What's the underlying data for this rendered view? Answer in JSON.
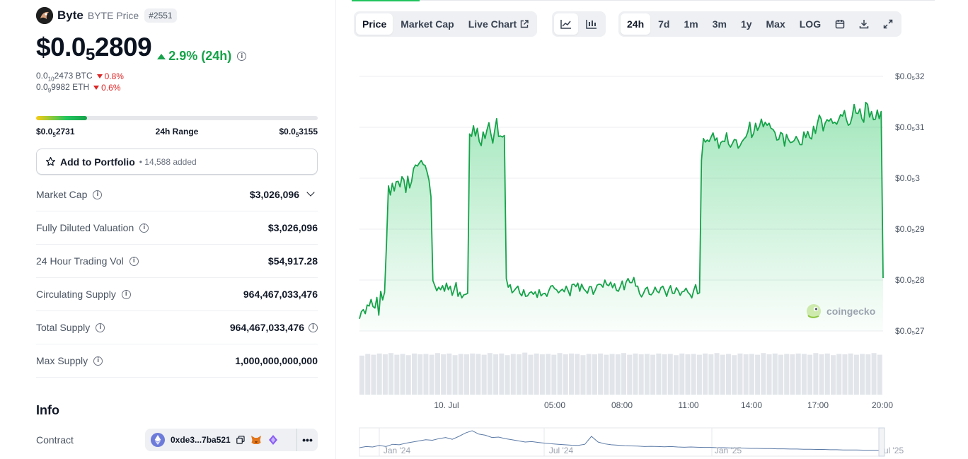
{
  "coin": {
    "name": "Byte",
    "subtitle": "BYTE Price",
    "rank": "#2551",
    "price_main": "$0.0",
    "price_sub": "5",
    "price_rest": "2809",
    "change_24h": "2.9% (24h)",
    "btc_main": "0.0",
    "btc_sub": "10",
    "btc_rest": "2473 BTC",
    "btc_change": "0.8%",
    "eth_main": "0.0",
    "eth_sub": "9",
    "eth_rest": "9982 ETH",
    "eth_change": "0.6%"
  },
  "range": {
    "low_main": "$0.0",
    "low_sub": "5",
    "low_rest": "2731",
    "label": "24h Range",
    "high_main": "$0.0",
    "high_sub": "5",
    "high_rest": "3155",
    "position_fraction": 0.18
  },
  "portfolio": {
    "label": "Add to Portfolio",
    "count": "• 14,588 added"
  },
  "stats": [
    {
      "label": "Market Cap",
      "value": "$3,026,096"
    },
    {
      "label": "Fully Diluted Valuation",
      "value": "$3,026,096"
    },
    {
      "label": "24 Hour Trading Vol",
      "value": "$54,917.28"
    },
    {
      "label": "Circulating Supply",
      "value": "964,467,033,476"
    },
    {
      "label": "Total Supply",
      "value": "964,467,033,476"
    },
    {
      "label": "Max Supply",
      "value": "1,000,000,000,000"
    }
  ],
  "info": {
    "title": "Info",
    "contract_label": "Contract",
    "contract_address": "0xde3...7ba521"
  },
  "toolbar": {
    "view_tabs": [
      "Price",
      "Market Cap",
      "Live Chart"
    ],
    "active_view": "Price",
    "ranges": [
      "24h",
      "7d",
      "1m",
      "3m",
      "1y",
      "Max",
      "LOG"
    ],
    "active_range": "24h"
  },
  "colors": {
    "up": "#16a34a",
    "down": "#dc2626",
    "line": "#16a34a",
    "brand_gecko": "#8dc63f"
  },
  "chart_data": {
    "type": "area",
    "y_ticks": [
      "$0.0₅32",
      "$0.0₅31",
      "$0.0₅3",
      "$0.0₅29",
      "$0.0₅28",
      "$0.0₅27"
    ],
    "y_tick_values": [
      3.2e-06,
      3.1e-06,
      3e-06,
      2.9e-06,
      2.8e-06,
      2.7e-06
    ],
    "ylim": [
      2.7e-06,
      3.2e-06
    ],
    "x_ticks": [
      "10. Jul",
      "05:00",
      "08:00",
      "11:00",
      "14:00",
      "17:00",
      "20:00"
    ],
    "watermark": "coingecko",
    "series": [
      {
        "values": [
          2.724,
          2.738,
          2.742,
          2.734,
          2.751,
          2.749,
          2.762,
          2.748,
          2.745,
          2.766,
          2.731,
          2.778,
          2.761,
          2.776,
          2.872,
          2.985,
          2.967,
          2.99,
          2.975,
          2.993,
          2.994,
          2.983,
          3.003,
          2.997,
          2.972,
          3.004,
          2.981,
          2.994,
          3.019,
          3.026,
          3.024,
          3.03,
          3.035,
          3.027,
          3.025,
          3.012,
          2.996,
          2.964,
          2.799,
          2.789,
          2.779,
          2.786,
          2.781,
          2.789,
          2.778,
          2.794,
          2.781,
          2.788,
          2.77,
          2.781,
          2.795,
          2.768,
          2.776,
          2.765,
          2.771,
          2.772,
          2.774,
          3.087,
          3.082,
          3.103,
          3.083,
          3.098,
          3.072,
          3.064,
          3.091,
          3.078,
          3.095,
          3.109,
          3.087,
          3.069,
          3.094,
          3.117,
          3.082,
          3.083,
          3.081,
          3.084,
          2.803,
          2.786,
          2.791,
          2.775,
          2.779,
          2.784,
          2.788,
          2.774,
          2.769,
          2.781,
          2.768,
          2.769,
          2.775,
          2.777,
          2.772,
          2.777,
          2.766,
          2.781,
          2.769,
          2.773,
          2.774,
          2.768,
          2.779,
          2.788,
          2.789,
          2.783,
          2.781,
          2.775,
          2.779,
          2.782,
          2.777,
          2.788,
          2.779,
          2.769,
          2.791,
          2.792,
          2.787,
          2.794,
          2.778,
          2.792,
          2.783,
          2.779,
          2.774,
          2.787,
          2.787,
          2.772,
          2.78,
          2.79,
          2.792,
          2.791,
          2.786,
          2.8,
          2.791,
          2.789,
          2.796,
          2.785,
          2.793,
          2.78,
          2.778,
          2.787,
          2.798,
          2.781,
          2.796,
          2.803,
          2.795,
          2.795,
          2.805,
          2.788,
          2.788,
          2.773,
          2.767,
          2.774,
          2.783,
          2.786,
          2.772,
          2.771,
          2.776,
          2.786,
          2.778,
          2.775,
          2.785,
          2.788,
          2.779,
          2.768,
          2.781,
          2.789,
          2.774,
          2.774,
          2.785,
          2.779,
          2.77,
          2.777,
          2.778,
          2.784,
          2.776,
          2.772,
          2.765,
          2.78,
          2.791,
          2.773,
          2.775,
          3.035,
          3.078,
          3.071,
          3.075,
          3.072,
          3.081,
          3.089,
          3.074,
          3.079,
          3.059,
          3.07,
          3.073,
          3.072,
          3.089,
          3.067,
          3.061,
          3.068,
          3.076,
          3.075,
          3.059,
          3.064,
          3.072,
          3.077,
          3.081,
          3.091,
          3.11,
          3.08,
          3.088,
          3.108,
          3.094,
          3.102,
          3.116,
          3.101,
          3.11,
          3.104,
          3.108,
          3.098,
          3.096,
          3.09,
          3.075,
          3.076,
          3.09,
          3.087,
          3.063,
          3.086,
          3.076,
          3.07,
          3.071,
          3.074,
          3.082,
          3.075,
          3.066,
          3.066,
          3.091,
          3.08,
          3.092,
          3.08,
          3.077,
          3.102,
          3.088,
          3.108,
          3.124,
          3.116,
          3.093,
          3.108,
          3.115,
          3.112,
          3.117,
          3.108,
          3.11,
          3.106,
          3.115,
          3.125,
          3.122,
          3.133,
          3.115,
          3.104,
          3.107,
          3.121,
          3.145,
          3.128,
          3.127,
          3.136,
          3.117,
          3.11,
          3.149,
          3.145,
          3.12,
          3.131,
          3.115,
          3.116,
          3.134,
          3.117,
          3.131,
          2.804
        ]
      }
    ],
    "volume": [
      0.92,
      0.96,
      0.94,
      0.97,
      0.95,
      0.98,
      0.94,
      0.96,
      0.93,
      0.97,
      0.95,
      0.96,
      0.94,
      0.98,
      0.95,
      0.97,
      0.93,
      0.96,
      0.95,
      0.97,
      0.96,
      0.94,
      0.98,
      0.95,
      0.97,
      0.93,
      0.96,
      0.95,
      0.99,
      0.94,
      0.97,
      0.95,
      0.96,
      0.94,
      0.98,
      0.95,
      0.97,
      0.96,
      0.93,
      0.96,
      0.95,
      0.97,
      0.94,
      0.96,
      0.95,
      0.98,
      0.94,
      0.97,
      0.95,
      0.96,
      0.94,
      0.97,
      0.95,
      0.96,
      0.93,
      0.97,
      0.95,
      0.96,
      0.94,
      0.97,
      0.95,
      0.98,
      0.94,
      0.96,
      0.93,
      0.97,
      0.95,
      0.96,
      0.94,
      0.98,
      0.95,
      0.97,
      0.94,
      0.96,
      0.95,
      0.97,
      0.96,
      0.94,
      0.98,
      0.95,
      0.97,
      0.93,
      0.96,
      0.95,
      0.97,
      0.94,
      0.96,
      0.95,
      0.98,
      0.94
    ],
    "overview": {
      "x_ticks": [
        "Jan '24",
        "Jul '24",
        "Jan '25",
        "Jul '25"
      ],
      "values": [
        0.25,
        0.3,
        0.28,
        0.35,
        0.3,
        0.4,
        0.38,
        0.45,
        0.5,
        0.55,
        0.6,
        0.58,
        0.65,
        0.7,
        0.62,
        0.75,
        0.9,
        1.0,
        0.85,
        0.8,
        0.7,
        0.72,
        0.65,
        0.6,
        0.55,
        0.5,
        0.52,
        0.48,
        0.45,
        0.42,
        0.4,
        0.38,
        0.36,
        0.35,
        0.4,
        0.75,
        0.5,
        0.42,
        0.38,
        0.36,
        0.34,
        0.33,
        0.32,
        0.3,
        0.31,
        0.3,
        0.29,
        0.3,
        0.28,
        0.27,
        0.28,
        0.27,
        0.26,
        0.26,
        0.25,
        0.25,
        0.24,
        0.24,
        0.23,
        0.22,
        0.22,
        0.21,
        0.21,
        0.2,
        0.2,
        0.19,
        0.19,
        0.18,
        0.18,
        0.17,
        0.17,
        0.16,
        0.16,
        0.15,
        0.15,
        0.15,
        0.14,
        0.14,
        0.14,
        0.13
      ]
    }
  }
}
